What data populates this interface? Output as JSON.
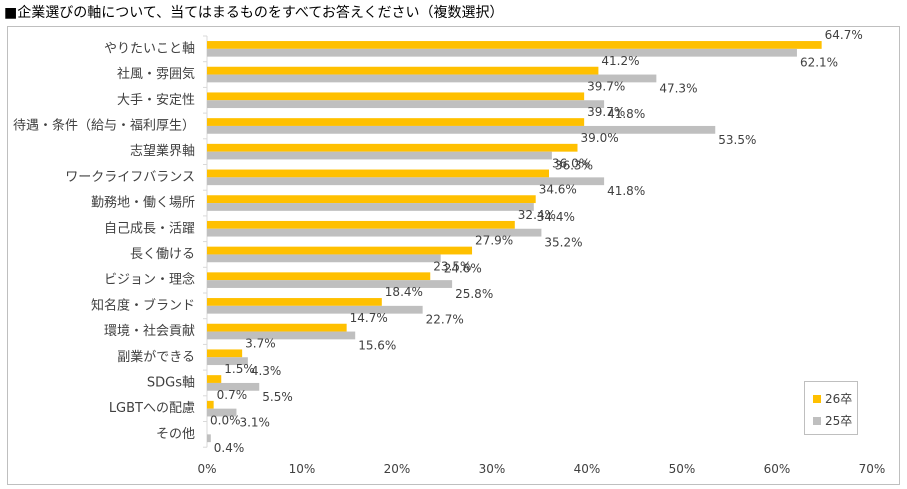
{
  "title": "■企業選びの軸について、当てはまるものをすべてお答えください（複数選択）",
  "colors": {
    "series_26": "#FFC000",
    "series_25": "#BFBFBF",
    "axis": "#D9D9D9",
    "text": "#404040"
  },
  "legend": {
    "items": [
      "26卒",
      "25卒"
    ]
  },
  "chart_data": {
    "type": "bar",
    "orientation": "horizontal",
    "categories": [
      "やりたいこと軸",
      "社風・雰囲気",
      "大手・安定性",
      "待遇・条件（給与・福利厚生）",
      "志望業界軸",
      "ワークライフバランス",
      "勤務地・働く場所",
      "自己成長・活躍",
      "長く働ける",
      "ビジョン・理念",
      "知名度・ブランド",
      "環境・社会貢献",
      "副業ができる",
      "SDGs軸",
      "LGBTへの配慮",
      "その他"
    ],
    "series": [
      {
        "name": "26卒",
        "values": [
          64.7,
          41.2,
          39.7,
          39.7,
          39.0,
          36.0,
          34.6,
          32.4,
          27.9,
          23.5,
          18.4,
          14.7,
          3.7,
          1.5,
          0.7,
          0.0
        ]
      },
      {
        "name": "25卒",
        "values": [
          62.1,
          47.3,
          41.8,
          53.5,
          36.3,
          41.8,
          34.4,
          35.2,
          24.6,
          25.8,
          22.7,
          15.6,
          4.3,
          5.5,
          3.1,
          0.4
        ]
      }
    ],
    "data_labels": [
      [
        "64.7%",
        "41.2%",
        "39.7%",
        "39.7%",
        "39.0%",
        "36.0%",
        "34.6%",
        "32.4%",
        "27.9%",
        "23.5%",
        "18.4%",
        "14.7%",
        "3.7%",
        "1.5%",
        "0.7%",
        "0.0%"
      ],
      [
        "62.1%",
        "47.3%",
        "41.8%",
        "53.5%",
        "36.3%",
        "41.8%",
        "34.4%",
        "35.2%",
        "24.6%",
        "25.8%",
        "22.7%",
        "15.6%",
        "4.3%",
        "5.5%",
        "3.1%",
        "0.4%"
      ]
    ],
    "xlim": [
      0,
      70
    ],
    "xticks": [
      "0%",
      "10%",
      "20%",
      "30%",
      "40%",
      "50%",
      "60%",
      "70%"
    ],
    "xtick_values": [
      0,
      10,
      20,
      30,
      40,
      50,
      60,
      70
    ],
    "grid": false,
    "legend_position": "bottom-right"
  }
}
